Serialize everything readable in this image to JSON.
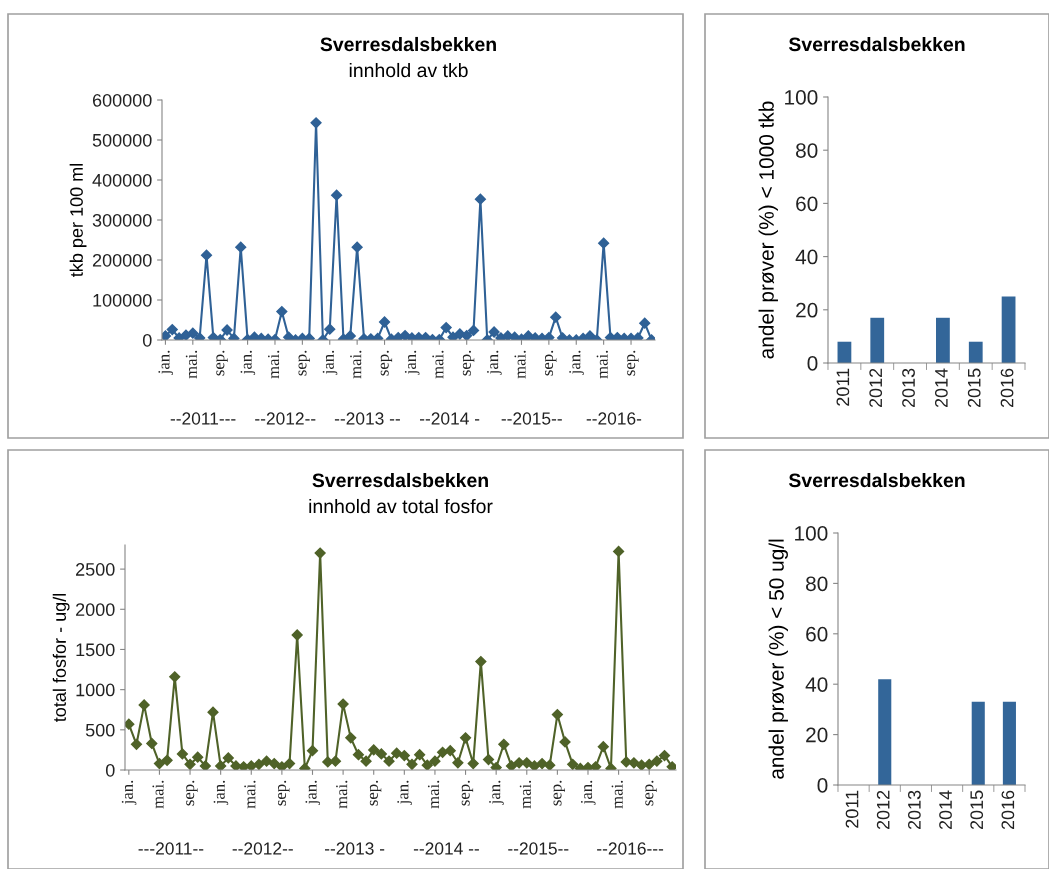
{
  "chart_data": [
    {
      "type": "line",
      "title": "Sverresdalsbekken",
      "subtitle": "innhold av tkb",
      "ylabel": "tkb per 100 ml",
      "categories": [
        "jan.",
        null,
        null,
        null,
        "mai.",
        null,
        null,
        null,
        "sep.",
        null,
        null,
        null,
        "jan.",
        null,
        null,
        null,
        "mai.",
        null,
        null,
        null,
        "sep.",
        null,
        null,
        null,
        "jan.",
        null,
        null,
        null,
        "mai.",
        null,
        null,
        null,
        "sep.",
        null,
        null,
        null,
        "jan.",
        null,
        null,
        null,
        "mai.",
        null,
        null,
        null,
        "sep.",
        null,
        null,
        null,
        "jan.",
        null,
        null,
        null,
        "mai.",
        null,
        null,
        null,
        "sep.",
        null,
        null,
        null,
        "jan.",
        null,
        null,
        null,
        "mai.",
        null,
        null,
        null,
        "sep.",
        null,
        null,
        null
      ],
      "series": [
        {
          "color": "#2f6196",
          "values": [
            10000,
            26000,
            5000,
            12000,
            17000,
            5000,
            212000,
            6000,
            1000,
            25000,
            4000,
            232000,
            1000,
            7000,
            4000,
            2000,
            1000,
            71000,
            7000,
            0,
            4000,
            4000,
            543000,
            0,
            27000,
            362000,
            2000,
            10000,
            232000,
            3000,
            3000,
            4000,
            45000,
            2000,
            6000,
            11000,
            5000,
            6000,
            6000,
            1000,
            1000,
            31000,
            7000,
            15000,
            11000,
            24000,
            352000,
            0,
            20000,
            5000,
            10000,
            7000,
            2000,
            10000,
            5000,
            4000,
            6000,
            57000,
            5000,
            0,
            0,
            4000,
            10000,
            0,
            242000,
            6000,
            6000,
            4000,
            4000,
            5000,
            42000,
            0
          ]
        }
      ],
      "marker": "diamond",
      "ylim": [
        0,
        600000
      ],
      "yticks": [
        0,
        100000,
        200000,
        300000,
        400000,
        500000,
        600000
      ],
      "annotations": [
        "--2011---",
        "--2012--",
        "--2013 --",
        "--2014 -",
        "--2015--",
        "--2016-"
      ]
    },
    {
      "type": "bar",
      "title": "Sverresdalsbekken",
      "ylabel": "andel prøver (%) < 1000 tkb",
      "categories": [
        "2011",
        "2012",
        "2013",
        "2014",
        "2015",
        "2016"
      ],
      "values": [
        8,
        17,
        0,
        17,
        8,
        25
      ],
      "color": "#336699",
      "ylim": [
        0,
        100
      ],
      "yticks": [
        0,
        20,
        40,
        60,
        80,
        100
      ]
    },
    {
      "type": "line",
      "title": "Sverresdalsbekken",
      "subtitle": "innhold av total fosfor",
      "ylabel": "total fosfor - ug/l",
      "categories": [
        "jan.",
        null,
        null,
        null,
        "mai.",
        null,
        null,
        null,
        "sep.",
        null,
        null,
        null,
        "jan.",
        null,
        null,
        null,
        "mai.",
        null,
        null,
        null,
        "sep.",
        null,
        null,
        null,
        "jan.",
        null,
        null,
        null,
        "mai.",
        null,
        null,
        null,
        "sep.",
        null,
        null,
        null,
        "jan.",
        null,
        null,
        null,
        "mai.",
        null,
        null,
        null,
        "sep.",
        null,
        null,
        null,
        "jan.",
        null,
        null,
        null,
        "mai.",
        null,
        null,
        null,
        "sep.",
        null,
        null,
        null,
        "jan.",
        null,
        null,
        null,
        "mai.",
        null,
        null,
        null,
        "sep.",
        null,
        null,
        null
      ],
      "series": [
        {
          "color": "#4f6228",
          "values": [
            570,
            320,
            810,
            330,
            80,
            120,
            1160,
            200,
            70,
            160,
            50,
            720,
            50,
            150,
            50,
            40,
            50,
            70,
            110,
            80,
            40,
            80,
            1680,
            20,
            240,
            2700,
            100,
            110,
            820,
            400,
            190,
            110,
            250,
            200,
            110,
            210,
            180,
            70,
            190,
            60,
            110,
            220,
            240,
            90,
            400,
            80,
            1350,
            130,
            30,
            320,
            50,
            90,
            90,
            50,
            80,
            60,
            690,
            350,
            70,
            20,
            30,
            40,
            290,
            20,
            2720,
            100,
            90,
            60,
            70,
            110,
            180,
            40
          ]
        }
      ],
      "marker": "diamond",
      "ylim": [
        0,
        2800
      ],
      "yticks": [
        0,
        500,
        1000,
        1500,
        2000,
        2500
      ],
      "annotations": [
        "---2011--",
        "--2012--",
        "--2013 -",
        "--2014 --",
        "--2015--",
        "--2016---"
      ]
    },
    {
      "type": "bar",
      "title": "Sverresdalsbekken",
      "ylabel": "andel prøver (%) < 50 ug/l",
      "categories": [
        "2011",
        "2012",
        "2013",
        "2014",
        "2015",
        "2016"
      ],
      "values": [
        0,
        42,
        0,
        0,
        33,
        33
      ],
      "color": "#336699",
      "ylim": [
        0,
        100
      ],
      "yticks": [
        0,
        20,
        40,
        60,
        80,
        100
      ]
    }
  ]
}
